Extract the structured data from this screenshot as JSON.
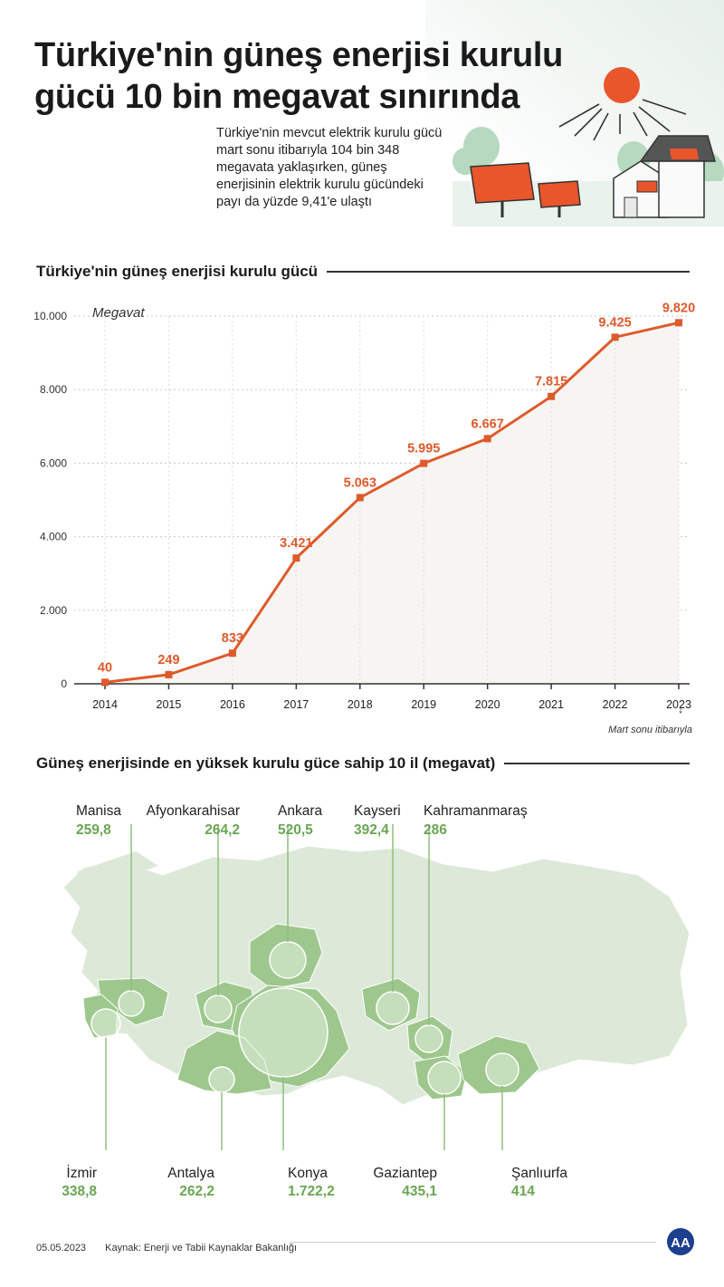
{
  "header": {
    "title": "Türkiye'nin güneş enerjisi kurulu gücü 10 bin megavat sınırında",
    "intro": "Türkiye'nin mevcut elektrik kurulu gücü mart sonu itibarıyla 104 bin 348 megavata yaklaşırken, güneş enerjisinin elektrik kurulu gücündeki payı da yüzde 9,41'e ulaştı"
  },
  "chart_data": [
    {
      "type": "line",
      "title": "Türkiye'nin güneş enerjisi kurulu gücü",
      "ylabel": "Megavat",
      "xlabel": "",
      "categories": [
        "2014",
        "2015",
        "2016",
        "2017",
        "2018",
        "2019",
        "2020",
        "2021",
        "2022",
        "2023"
      ],
      "values": [
        40,
        249,
        833,
        3421,
        5063,
        5995,
        6667,
        7815,
        9425,
        9820
      ],
      "value_labels": [
        "40",
        "249",
        "833",
        "3.421",
        "5.063",
        "5.995",
        "6.667",
        "7.815",
        "9.425",
        "9.820"
      ],
      "ylim": [
        0,
        10000
      ],
      "yticks": [
        0,
        2000,
        4000,
        6000,
        8000,
        10000
      ],
      "ytick_labels": [
        "0",
        "2.000",
        "4.000",
        "6.000",
        "8.000",
        "10.000"
      ],
      "grid": true,
      "note": "Mart sonu itibarıyla",
      "note_arrow": "↓",
      "colors": {
        "line": "#de5a2b",
        "area": "#f7f5f2",
        "text": "#de5a2b",
        "grid": "#c8c8c8"
      }
    },
    {
      "type": "table",
      "title": "Güneş enerjisinde en yüksek kurulu güce sahip 10 il (megavat)",
      "rows": [
        {
          "province": "Manisa",
          "value": "259,8"
        },
        {
          "province": "Afyonkarahisar",
          "value": "264,2"
        },
        {
          "province": "Ankara",
          "value": "520,5"
        },
        {
          "province": "Kayseri",
          "value": "392,4"
        },
        {
          "province": "Kahramanmaraş",
          "value": "286"
        },
        {
          "province": "İzmir",
          "value": "338,8"
        },
        {
          "province": "Antalya",
          "value": "262,2"
        },
        {
          "province": "Konya",
          "value": "1.722,2"
        },
        {
          "province": "Gaziantep",
          "value": "435,1"
        },
        {
          "province": "Şanlıurfa",
          "value": "414"
        }
      ],
      "colors": {
        "value": "#6aa653",
        "province_fill": "#9ec78d",
        "map_fill": "#dce9d8"
      }
    }
  ],
  "footer": {
    "date": "05.05.2023",
    "source": "Kaynak: Enerji ve Tabii Kaynaklar Bakanlığı",
    "logo_text": "AA"
  }
}
